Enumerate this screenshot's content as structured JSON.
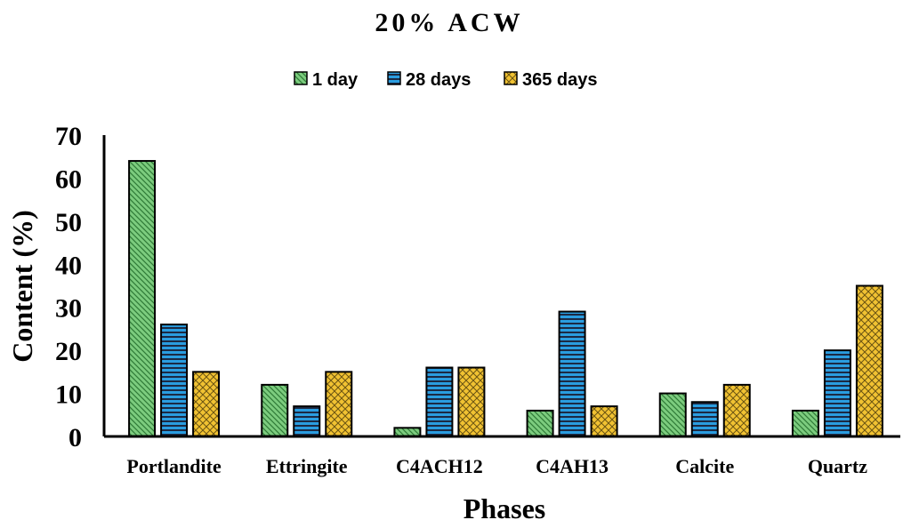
{
  "chart_data": {
    "type": "bar",
    "title": "20% ACW",
    "xlabel": "Phases",
    "ylabel": "Content (%)",
    "ylim": [
      0,
      70
    ],
    "yticks": [
      0,
      10,
      20,
      30,
      40,
      50,
      60,
      70
    ],
    "grid": false,
    "legend_position": "top",
    "categories": [
      "Portlandite",
      "Ettringite",
      "C4ACH12",
      "C4AH13",
      "Calcite",
      "Quartz"
    ],
    "series": [
      {
        "name": "1 day",
        "values": [
          64,
          12,
          2,
          6,
          10,
          6
        ],
        "fill": "#7ccc7e",
        "pattern": "diagonal"
      },
      {
        "name": "28 days",
        "values": [
          26,
          7,
          16,
          29,
          8,
          20
        ],
        "fill": "#2a9de0",
        "pattern": "horizontal"
      },
      {
        "name": "365 days",
        "values": [
          15,
          15,
          16,
          7,
          12,
          35
        ],
        "fill": "#f1c232",
        "pattern": "crosshatch"
      }
    ]
  }
}
